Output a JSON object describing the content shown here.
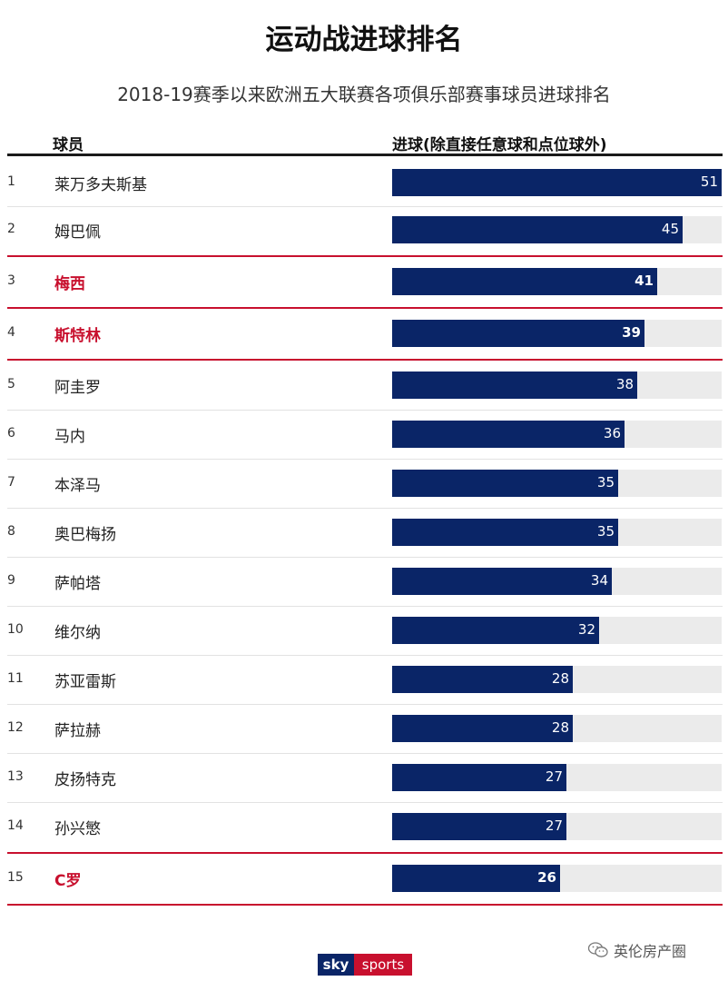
{
  "title": "运动战进球排名",
  "subtitle": "2018-19赛季以来欧洲五大联赛各项俱乐部赛事球员进球排名",
  "header": {
    "player": "球员",
    "goals": "进球(除直接任意球和点位球外)"
  },
  "colors": {
    "bar": "#0a2567",
    "highlight": "#c8102e",
    "track": "#ebebeb"
  },
  "chart_data": {
    "type": "bar",
    "orientation": "horizontal",
    "title": "运动战进球排名",
    "subtitle": "2018-19赛季以来欧洲五大联赛各项俱乐部赛事球员进球排名",
    "xlim": [
      0,
      51
    ],
    "rows": [
      {
        "rank": "1",
        "name": "莱万多夫斯基",
        "value": 51,
        "highlight": false
      },
      {
        "rank": "2",
        "name": "姆巴佩",
        "value": 45,
        "highlight": false
      },
      {
        "rank": "3",
        "name": "梅西",
        "value": 41,
        "highlight": true
      },
      {
        "rank": "4",
        "name": "斯特林",
        "value": 39,
        "highlight": true
      },
      {
        "rank": "5",
        "name": "阿圭罗",
        "value": 38,
        "highlight": false
      },
      {
        "rank": "6",
        "name": "马内",
        "value": 36,
        "highlight": false
      },
      {
        "rank": "7",
        "name": "本泽马",
        "value": 35,
        "highlight": false
      },
      {
        "rank": "8",
        "name": "奥巴梅扬",
        "value": 35,
        "highlight": false
      },
      {
        "rank": "9",
        "name": "萨帕塔",
        "value": 34,
        "highlight": false
      },
      {
        "rank": "10",
        "name": "维尔纳",
        "value": 32,
        "highlight": false
      },
      {
        "rank": "11",
        "name": "苏亚雷斯",
        "value": 28,
        "highlight": false
      },
      {
        "rank": "12",
        "name": "萨拉赫",
        "value": 28,
        "highlight": false
      },
      {
        "rank": "13",
        "name": "皮扬特克",
        "value": 27,
        "highlight": false
      },
      {
        "rank": "14",
        "name": "孙兴慜",
        "value": 27,
        "highlight": false
      },
      {
        "rank": "15",
        "name": "C罗",
        "value": 26,
        "highlight": true
      }
    ]
  },
  "logo": {
    "sky": "sky",
    "sports": "sports"
  },
  "watermark": {
    "text": "英伦房产圈",
    "icon": "wechat-icon"
  }
}
